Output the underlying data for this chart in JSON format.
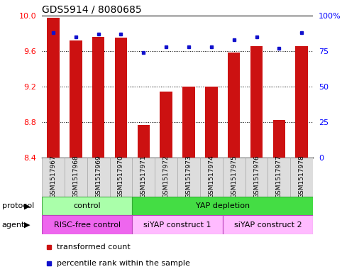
{
  "title": "GDS5914 / 8080685",
  "samples": [
    "GSM1517967",
    "GSM1517968",
    "GSM1517969",
    "GSM1517970",
    "GSM1517971",
    "GSM1517972",
    "GSM1517973",
    "GSM1517974",
    "GSM1517975",
    "GSM1517976",
    "GSM1517977",
    "GSM1517978"
  ],
  "red_values": [
    9.97,
    9.72,
    9.76,
    9.75,
    8.77,
    9.14,
    9.2,
    9.2,
    9.58,
    9.65,
    8.82,
    9.65
  ],
  "blue_values": [
    88,
    85,
    87,
    87,
    74,
    78,
    78,
    78,
    83,
    85,
    77,
    88
  ],
  "ylim_left": [
    8.4,
    10.0
  ],
  "ylim_right": [
    0,
    100
  ],
  "yticks_left": [
    8.4,
    8.8,
    9.2,
    9.6,
    10.0
  ],
  "yticks_right": [
    0,
    25,
    50,
    75,
    100
  ],
  "ytick_labels_right": [
    "0",
    "25",
    "50",
    "75",
    "100%"
  ],
  "bar_color": "#cc1111",
  "dot_color": "#1111cc",
  "protocol_control_color": "#aaffaa",
  "protocol_yap_color": "#44dd44",
  "agent_risc_color": "#ee66ee",
  "agent_siyap_color": "#ffbbff",
  "protocol_control_label": "control",
  "protocol_yap_label": "YAP depletion",
  "agent_risc_label": "RISC-free control",
  "agent_siyap1_label": "siYAP construct 1",
  "agent_siyap2_label": "siYAP construct 2",
  "legend_red": "transformed count",
  "legend_blue": "percentile rank within the sample",
  "protocol_label": "protocol",
  "agent_label": "agent",
  "bar_bottom": 8.4,
  "bar_width": 0.55
}
